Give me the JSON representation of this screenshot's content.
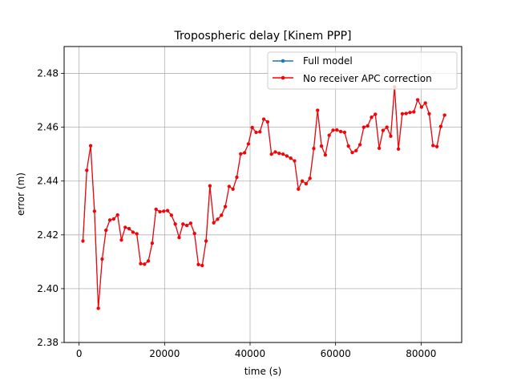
{
  "chart_data": {
    "type": "line",
    "title": "Tropospheric delay [Kinem PPP]",
    "xlabel": "time (s)",
    "ylabel": "error (m)",
    "xlim": [
      -3500,
      89500
    ],
    "ylim": [
      2.38,
      2.49
    ],
    "xticks": [
      0,
      20000,
      40000,
      60000,
      80000
    ],
    "xtick_labels": [
      "0",
      "20000",
      "40000",
      "60000",
      "80000"
    ],
    "yticks": [
      2.38,
      2.4,
      2.42,
      2.44,
      2.46,
      2.48
    ],
    "ytick_labels": [
      "2.38",
      "2.40",
      "2.42",
      "2.44",
      "2.46",
      "2.48"
    ],
    "grid": true,
    "legend_position": "top-right",
    "x": [
      900,
      1800,
      2700,
      3600,
      4500,
      5400,
      6300,
      7200,
      8100,
      9000,
      9900,
      10800,
      11700,
      12600,
      13500,
      14400,
      15300,
      16200,
      17100,
      18000,
      18900,
      19800,
      20700,
      21600,
      22500,
      23400,
      24300,
      25200,
      26100,
      27000,
      27900,
      28800,
      29700,
      30600,
      31500,
      32400,
      33300,
      34200,
      35100,
      36000,
      36900,
      37800,
      38700,
      39600,
      40500,
      41400,
      42300,
      43200,
      44100,
      45000,
      45900,
      46800,
      47700,
      48600,
      49500,
      50400,
      51300,
      52200,
      53100,
      54000,
      54900,
      55800,
      56700,
      57600,
      58500,
      59400,
      60300,
      61200,
      62100,
      63000,
      63900,
      64800,
      65700,
      66600,
      67500,
      68400,
      69300,
      70200,
      71100,
      72000,
      72900,
      73800,
      74700,
      75600,
      76500,
      77400,
      78300,
      79200,
      80100,
      81000,
      81900,
      82800,
      83700,
      84600,
      85500
    ],
    "series": [
      {
        "name": "Full model",
        "color": "#1f77b4",
        "values": [
          2.4177,
          2.444,
          2.4531,
          2.4288,
          2.3927,
          2.411,
          2.4217,
          2.4255,
          2.4259,
          2.4274,
          2.4181,
          2.4228,
          2.4223,
          2.421,
          2.4204,
          2.4093,
          2.4091,
          2.4103,
          2.4169,
          2.4295,
          2.4286,
          2.4288,
          2.429,
          2.4273,
          2.424,
          2.419,
          2.424,
          2.4235,
          2.4243,
          2.4205,
          2.409,
          2.4086,
          2.4177,
          2.4382,
          2.4245,
          2.4258,
          2.4273,
          2.4305,
          2.438,
          2.437,
          2.4414,
          2.4501,
          2.4505,
          2.4538,
          2.4599,
          2.4581,
          2.4583,
          2.463,
          2.462,
          2.45,
          2.4508,
          2.4503,
          2.45,
          2.4493,
          2.4485,
          2.4475,
          2.437,
          2.44,
          2.439,
          2.441,
          2.4521,
          2.4663,
          2.453,
          2.4497,
          2.457,
          2.4589,
          2.459,
          2.4584,
          2.4581,
          2.453,
          2.4506,
          2.4513,
          2.4535,
          2.46,
          2.4605,
          2.4637,
          2.4648,
          2.4522,
          2.4588,
          2.46,
          2.4567,
          2.475,
          2.4519,
          2.465,
          2.4651,
          2.4655,
          2.4657,
          2.4702,
          2.4675,
          2.469,
          2.465,
          2.4532,
          2.4528,
          2.4603,
          2.4645
        ]
      },
      {
        "name": "No receiver APC correction",
        "color": "#ff0000",
        "values": [
          2.4177,
          2.444,
          2.4531,
          2.4288,
          2.3927,
          2.411,
          2.4217,
          2.4255,
          2.4259,
          2.4274,
          2.4181,
          2.4228,
          2.4223,
          2.421,
          2.4204,
          2.4093,
          2.4091,
          2.4103,
          2.4169,
          2.4295,
          2.4286,
          2.4288,
          2.429,
          2.4273,
          2.424,
          2.419,
          2.424,
          2.4235,
          2.4243,
          2.4205,
          2.409,
          2.4086,
          2.4177,
          2.4382,
          2.4245,
          2.4258,
          2.4273,
          2.4305,
          2.438,
          2.437,
          2.4414,
          2.4501,
          2.4505,
          2.4538,
          2.4599,
          2.4581,
          2.4583,
          2.463,
          2.462,
          2.45,
          2.4508,
          2.4503,
          2.45,
          2.4493,
          2.4485,
          2.4475,
          2.437,
          2.44,
          2.439,
          2.441,
          2.4521,
          2.4663,
          2.453,
          2.4497,
          2.457,
          2.4589,
          2.459,
          2.4584,
          2.4581,
          2.453,
          2.4506,
          2.4513,
          2.4535,
          2.46,
          2.4605,
          2.4637,
          2.4648,
          2.4522,
          2.4588,
          2.46,
          2.4567,
          2.475,
          2.4519,
          2.465,
          2.4651,
          2.4655,
          2.4657,
          2.4702,
          2.4675,
          2.469,
          2.465,
          2.4532,
          2.4528,
          2.4603,
          2.4645
        ]
      }
    ]
  }
}
